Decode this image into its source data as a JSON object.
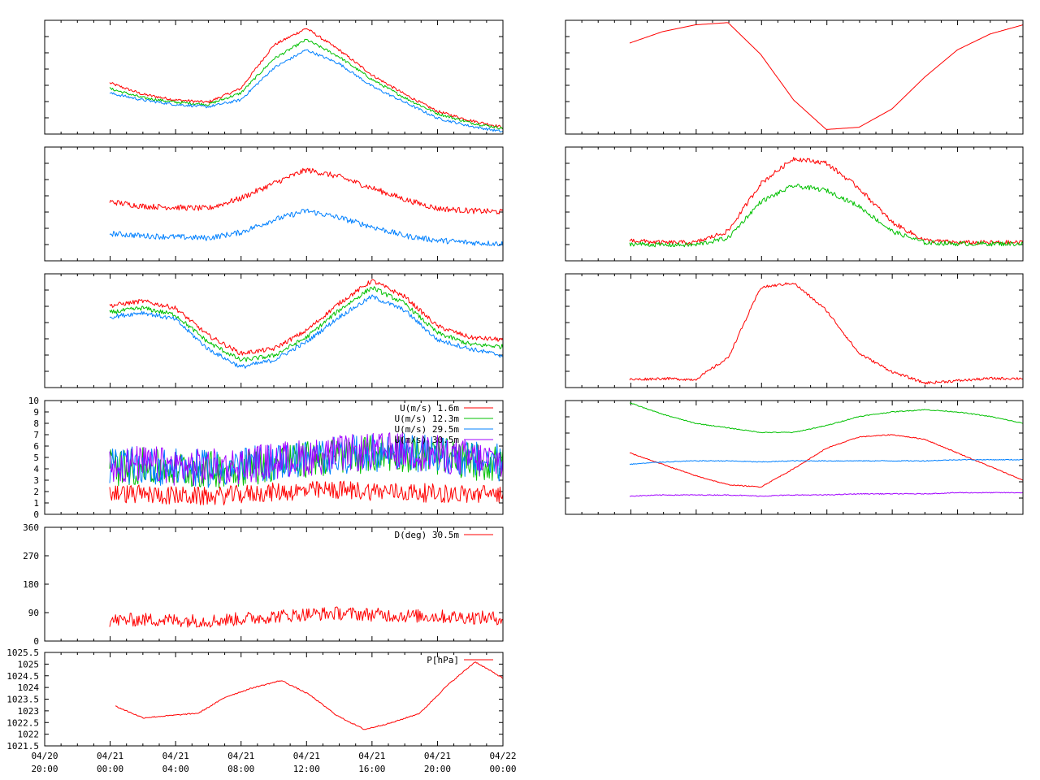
{
  "colors": {
    "red": "#ff0000",
    "green": "#00c000",
    "blue": "#0080ff",
    "purple": "#a000ff"
  },
  "x_ticks": [
    {
      "date": "04/20",
      "time": "20:00"
    },
    {
      "date": "04/21",
      "time": "00:00"
    },
    {
      "date": "04/21",
      "time": "04:00"
    },
    {
      "date": "04/21",
      "time": "08:00"
    },
    {
      "date": "04/21",
      "time": "12:00"
    },
    {
      "date": "04/21",
      "time": "16:00"
    },
    {
      "date": "04/21",
      "time": "20:00"
    },
    {
      "date": "04/22",
      "time": "00:00"
    }
  ],
  "chart_data": [
    {
      "id": "wind-speed",
      "type": "line",
      "yticks": [
        "0",
        "1",
        "2",
        "3",
        "4",
        "5",
        "6",
        "7",
        "8",
        "9",
        "10"
      ],
      "ylim": [
        0,
        10
      ],
      "series": [
        {
          "name": "U(m/s)  1.6m",
          "color": "red",
          "values": [
            1.6,
            1.5,
            1.4,
            1.3,
            1.5,
            1.7,
            1.8,
            1.9,
            1.8,
            1.7,
            1.6,
            1.5,
            1.6
          ]
        },
        {
          "name": "U(m/s) 12.3m",
          "color": "green",
          "values": [
            3.6,
            3.7,
            3.5,
            3.4,
            3.6,
            4.0,
            4.3,
            4.6,
            4.8,
            4.9,
            4.6,
            4.2,
            3.9
          ]
        },
        {
          "name": "U(m/s) 29.5m",
          "color": "blue",
          "values": [
            3.7,
            3.8,
            3.6,
            3.5,
            3.7,
            4.1,
            4.4,
            4.7,
            4.9,
            5.0,
            4.7,
            4.3,
            4.0
          ]
        },
        {
          "name": "U(m/s) 30.5m",
          "color": "purple",
          "values": [
            3.8,
            3.9,
            3.7,
            3.6,
            3.8,
            4.2,
            4.5,
            4.8,
            5.0,
            5.1,
            4.8,
            4.4,
            4.1
          ]
        }
      ]
    },
    {
      "id": "wind-direction",
      "type": "line",
      "yticks": [
        "0",
        "90",
        "180",
        "270",
        "360"
      ],
      "ylim": [
        0,
        360
      ],
      "series": [
        {
          "name": "D(deg)  30.5m",
          "color": "red",
          "values": [
            65,
            68,
            66,
            64,
            70,
            78,
            85,
            88,
            84,
            80,
            78,
            75,
            72
          ]
        }
      ]
    },
    {
      "id": "pressure",
      "type": "line",
      "yticks": [
        "1021.5",
        "1022",
        "1022.5",
        "1023",
        "1023.5",
        "1024",
        "1024.5",
        "1025",
        "1025.5"
      ],
      "ylim": [
        1021.5,
        1025.5
      ],
      "series": [
        {
          "name": "P[hPa]",
          "color": "red",
          "values": [
            1023.2,
            1022.7,
            1022.8,
            1022.9,
            1023.6,
            1024.0,
            1024.3,
            1023.7,
            1022.8,
            1022.2,
            1022.5,
            1022.9,
            1024.1,
            1025.1,
            1024.4
          ]
        }
      ]
    },
    {
      "id": "temperature",
      "type": "line",
      "series": [
        {
          "color": "red",
          "values": [
            0.45,
            0.35,
            0.3,
            0.28,
            0.4,
            0.78,
            0.93,
            0.74,
            0.52,
            0.35,
            0.2,
            0.12,
            0.06
          ]
        },
        {
          "color": "green",
          "values": [
            0.4,
            0.32,
            0.28,
            0.26,
            0.36,
            0.66,
            0.83,
            0.68,
            0.48,
            0.32,
            0.18,
            0.1,
            0.05
          ]
        },
        {
          "color": "blue",
          "values": [
            0.36,
            0.3,
            0.26,
            0.24,
            0.3,
            0.58,
            0.74,
            0.62,
            0.42,
            0.28,
            0.14,
            0.07,
            0.02
          ]
        }
      ]
    },
    {
      "id": "turbulence",
      "type": "line",
      "series": [
        {
          "color": "red",
          "values": [
            0.52,
            0.48,
            0.47,
            0.46,
            0.55,
            0.68,
            0.8,
            0.74,
            0.64,
            0.54,
            0.46,
            0.44,
            0.43
          ]
        },
        {
          "color": "blue",
          "values": [
            0.24,
            0.22,
            0.21,
            0.2,
            0.25,
            0.36,
            0.44,
            0.38,
            0.3,
            0.22,
            0.18,
            0.16,
            0.15
          ]
        }
      ]
    },
    {
      "id": "temperature-profile",
      "type": "line",
      "series": [
        {
          "color": "red",
          "values": [
            0.72,
            0.76,
            0.7,
            0.46,
            0.3,
            0.34,
            0.5,
            0.74,
            0.94,
            0.8,
            0.54,
            0.44,
            0.42
          ]
        },
        {
          "color": "green",
          "values": [
            0.66,
            0.7,
            0.64,
            0.4,
            0.24,
            0.28,
            0.44,
            0.68,
            0.88,
            0.74,
            0.48,
            0.38,
            0.36
          ]
        },
        {
          "color": "blue",
          "values": [
            0.62,
            0.66,
            0.6,
            0.34,
            0.18,
            0.24,
            0.4,
            0.62,
            0.8,
            0.68,
            0.42,
            0.34,
            0.28
          ]
        }
      ]
    },
    {
      "id": "elevation",
      "type": "line",
      "series": [
        {
          "color": "red",
          "values": [
            0.8,
            0.9,
            0.96,
            0.98,
            0.7,
            0.3,
            0.04,
            0.06,
            0.22,
            0.5,
            0.74,
            0.88,
            0.96
          ]
        }
      ]
    },
    {
      "id": "radiation",
      "type": "line",
      "series": [
        {
          "color": "red",
          "values": [
            0.18,
            0.16,
            0.16,
            0.26,
            0.68,
            0.9,
            0.86,
            0.64,
            0.34,
            0.18,
            0.16,
            0.16,
            0.16
          ]
        },
        {
          "color": "green",
          "values": [
            0.15,
            0.14,
            0.14,
            0.2,
            0.52,
            0.66,
            0.62,
            0.48,
            0.26,
            0.16,
            0.15,
            0.15,
            0.15
          ]
        }
      ]
    },
    {
      "id": "net-radiation",
      "type": "line",
      "series": [
        {
          "color": "red",
          "values": [
            0.07,
            0.08,
            0.07,
            0.26,
            0.88,
            0.92,
            0.68,
            0.3,
            0.14,
            0.04,
            0.06,
            0.08,
            0.08
          ]
        }
      ]
    },
    {
      "id": "humidity",
      "type": "line",
      "series": [
        {
          "color": "green",
          "values": [
            0.98,
            0.88,
            0.8,
            0.76,
            0.72,
            0.72,
            0.78,
            0.86,
            0.9,
            0.92,
            0.9,
            0.86,
            0.8
          ]
        },
        {
          "color": "red",
          "values": [
            0.54,
            0.44,
            0.34,
            0.26,
            0.24,
            0.4,
            0.58,
            0.68,
            0.7,
            0.66,
            0.54,
            0.42,
            0.3
          ]
        },
        {
          "color": "blue",
          "values": [
            0.44,
            0.46,
            0.47,
            0.47,
            0.46,
            0.47,
            0.47,
            0.47,
            0.47,
            0.47,
            0.48,
            0.48,
            0.48
          ]
        },
        {
          "color": "purple",
          "values": [
            0.16,
            0.17,
            0.17,
            0.17,
            0.16,
            0.17,
            0.17,
            0.18,
            0.18,
            0.18,
            0.19,
            0.19,
            0.19
          ]
        }
      ]
    }
  ]
}
